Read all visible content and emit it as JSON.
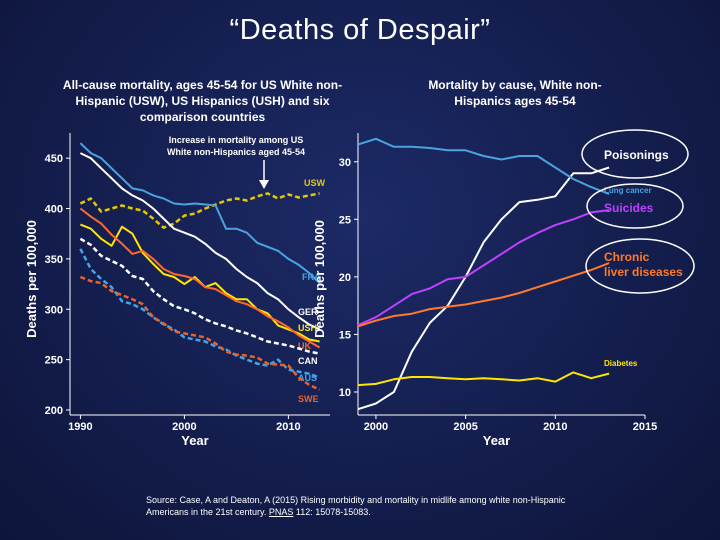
{
  "slide": {
    "title": "“Deaths of Despair”",
    "source_prefix": "Source: Case, A and Deaton, A (2015) Rising morbidity and mortality in midlife among white non-Hispanic Americans in the 21st century. ",
    "source_journal": "PNAS",
    "source_suffix": " 112: 15078-15083."
  },
  "colors": {
    "USW": "#e6c800",
    "FRA": "#4aa3e0",
    "GER": "#ffffff",
    "USH": "#ffe600",
    "UK": "#ff6a2a",
    "CAN": "#ffffff",
    "AUS": "#3fa6e8",
    "SWE": "#e8632a",
    "Poisonings": "#ffffff",
    "Lung cancer": "#4aa3e0",
    "Suicides": "#c040ff",
    "Chronic liver diseases": "#ff7a2a",
    "Diabetes": "#ffe600"
  },
  "chart_data": [
    {
      "type": "line",
      "title": "All-cause mortality, ages 45-54 for US White non-Hispanic (USW), US Hispanics (USH) and six comparison countries",
      "xlabel": "Year",
      "ylabel": "Deaths per 100,000",
      "xlim": [
        1989,
        2014
      ],
      "ylim": [
        195,
        475
      ],
      "xticks": [
        "1990",
        "2000",
        "2010"
      ],
      "yticks": [
        "200",
        "250",
        "300",
        "350",
        "400",
        "450"
      ],
      "annotation": "Increase in mortality among US White non-Hispanics aged 45-54",
      "series": [
        {
          "name": "USW",
          "style": "dashed",
          "x": [
            1990,
            1991,
            1992,
            1993,
            1994,
            1995,
            1996,
            1997,
            1998,
            1999,
            2000,
            2001,
            2002,
            2003,
            2004,
            2005,
            2006,
            2007,
            2008,
            2009,
            2010,
            2011,
            2012,
            2013
          ],
          "y": [
            405,
            410,
            397,
            400,
            403,
            400,
            398,
            390,
            381,
            385,
            393,
            395,
            400,
            404,
            408,
            410,
            408,
            412,
            415,
            410,
            414,
            411,
            413,
            415
          ]
        },
        {
          "name": "FRA",
          "style": "solid",
          "x": [
            1990,
            1991,
            1992,
            1993,
            1994,
            1995,
            1996,
            1997,
            1998,
            1999,
            2000,
            2001,
            2002,
            2003,
            2004,
            2005,
            2006,
            2007,
            2008,
            2009,
            2010,
            2011,
            2012,
            2013
          ],
          "y": [
            465,
            455,
            450,
            440,
            430,
            420,
            418,
            413,
            410,
            405,
            404,
            405,
            404,
            403,
            380,
            380,
            376,
            366,
            362,
            358,
            350,
            344,
            336,
            326
          ]
        },
        {
          "name": "GER",
          "style": "solid",
          "x": [
            1990,
            1991,
            1992,
            1993,
            1994,
            1995,
            1996,
            1997,
            1998,
            1999,
            2000,
            2001,
            2002,
            2003,
            2004,
            2005,
            2006,
            2007,
            2008,
            2009,
            2010,
            2011,
            2012,
            2013
          ],
          "y": [
            455,
            450,
            440,
            430,
            420,
            413,
            408,
            400,
            390,
            380,
            376,
            372,
            365,
            356,
            350,
            340,
            332,
            326,
            316,
            310,
            300,
            292,
            285,
            280
          ]
        },
        {
          "name": "USH",
          "style": "solid",
          "x": [
            1990,
            1991,
            1992,
            1993,
            1994,
            1995,
            1996,
            1997,
            1998,
            1999,
            2000,
            2001,
            2002,
            2003,
            2004,
            2005,
            2006,
            2007,
            2008,
            2009,
            2010,
            2011,
            2012,
            2013
          ],
          "y": [
            384,
            380,
            370,
            363,
            382,
            375,
            356,
            345,
            335,
            332,
            325,
            332,
            322,
            326,
            316,
            310,
            310,
            300,
            296,
            284,
            280,
            276,
            270,
            268
          ]
        },
        {
          "name": "UK",
          "style": "solid",
          "x": [
            1990,
            1991,
            1992,
            1993,
            1994,
            1995,
            1996,
            1997,
            1998,
            1999,
            2000,
            2001,
            2002,
            2003,
            2004,
            2005,
            2006,
            2007,
            2008,
            2009,
            2010,
            2011,
            2012,
            2013
          ],
          "y": [
            400,
            392,
            385,
            374,
            365,
            355,
            358,
            350,
            340,
            335,
            333,
            330,
            322,
            320,
            314,
            308,
            305,
            300,
            293,
            288,
            282,
            274,
            268,
            262
          ]
        },
        {
          "name": "CAN",
          "style": "dashed",
          "x": [
            1990,
            1991,
            1992,
            1993,
            1994,
            1995,
            1996,
            1997,
            1998,
            1999,
            2000,
            2001,
            2002,
            2003,
            2004,
            2005,
            2006,
            2007,
            2008,
            2009,
            2010,
            2011,
            2012,
            2013
          ],
          "y": [
            370,
            364,
            353,
            348,
            343,
            333,
            330,
            318,
            310,
            303,
            300,
            296,
            290,
            286,
            283,
            279,
            276,
            272,
            268,
            266,
            264,
            261,
            258,
            256
          ]
        },
        {
          "name": "AUS",
          "style": "dashed",
          "x": [
            1990,
            1991,
            1992,
            1993,
            1994,
            1995,
            1996,
            1997,
            1998,
            1999,
            2000,
            2001,
            2002,
            2003,
            2004,
            2005,
            2006,
            2007,
            2008,
            2009,
            2010,
            2011,
            2012,
            2013
          ],
          "y": [
            360,
            340,
            330,
            322,
            308,
            305,
            300,
            292,
            285,
            280,
            272,
            270,
            268,
            263,
            260,
            254,
            250,
            246,
            244,
            250,
            240,
            238,
            236,
            232
          ]
        },
        {
          "name": "SWE",
          "style": "dashed",
          "x": [
            1990,
            1991,
            1992,
            1993,
            1994,
            1995,
            1996,
            1997,
            1998,
            1999,
            2000,
            2001,
            2002,
            2003,
            2004,
            2005,
            2006,
            2007,
            2008,
            2009,
            2010,
            2011,
            2012,
            2013
          ],
          "y": [
            332,
            328,
            326,
            318,
            314,
            310,
            305,
            292,
            286,
            278,
            276,
            274,
            272,
            266,
            258,
            255,
            254,
            252,
            246,
            245,
            244,
            232,
            225,
            220
          ]
        }
      ]
    },
    {
      "type": "line",
      "title": "Mortality by cause, White non-Hispanics ages 45-54",
      "xlabel": "Year",
      "ylabel": "Deaths per 100,000",
      "xlim": [
        1999,
        2015
      ],
      "ylim": [
        8,
        32.5
      ],
      "xticks": [
        "2000",
        "2005",
        "2010",
        "2015"
      ],
      "yticks": [
        "10",
        "15",
        "20",
        "25",
        "30"
      ],
      "series": [
        {
          "name": "Poisonings",
          "style": "solid",
          "x": [
            1999,
            2000,
            2001,
            2002,
            2003,
            2004,
            2005,
            2006,
            2007,
            2008,
            2009,
            2010,
            2011,
            2012,
            2013
          ],
          "y": [
            8.5,
            9.0,
            10.0,
            13.5,
            16.0,
            17.5,
            20.0,
            23.0,
            25.0,
            26.5,
            26.7,
            27.0,
            29.0,
            29.0,
            29.5
          ]
        },
        {
          "name": "Lung cancer",
          "style": "solid",
          "x": [
            1999,
            2000,
            2001,
            2002,
            2003,
            2004,
            2005,
            2006,
            2007,
            2008,
            2009,
            2010,
            2011,
            2012,
            2013
          ],
          "y": [
            31.5,
            32.0,
            31.3,
            31.3,
            31.2,
            31.0,
            31.0,
            30.5,
            30.2,
            30.5,
            30.5,
            29.5,
            28.5,
            27.8,
            27.2
          ]
        },
        {
          "name": "Suicides",
          "style": "solid",
          "x": [
            1999,
            2000,
            2001,
            2002,
            2003,
            2004,
            2005,
            2006,
            2007,
            2008,
            2009,
            2010,
            2011,
            2012,
            2013
          ],
          "y": [
            15.8,
            16.5,
            17.5,
            18.5,
            19.0,
            19.8,
            20.0,
            21.0,
            22.0,
            23.0,
            23.8,
            24.5,
            25.0,
            25.6,
            25.8
          ]
        },
        {
          "name": "Chronic liver diseases",
          "style": "solid",
          "x": [
            1999,
            2000,
            2001,
            2002,
            2003,
            2004,
            2005,
            2006,
            2007,
            2008,
            2009,
            2010,
            2011,
            2012,
            2013
          ],
          "y": [
            15.7,
            16.2,
            16.6,
            16.8,
            17.2,
            17.4,
            17.6,
            17.9,
            18.2,
            18.6,
            19.1,
            19.6,
            20.1,
            20.6,
            21.2
          ]
        },
        {
          "name": "Diabetes",
          "style": "solid",
          "x": [
            1999,
            2000,
            2001,
            2002,
            2003,
            2004,
            2005,
            2006,
            2007,
            2008,
            2009,
            2010,
            2011,
            2012,
            2013
          ],
          "y": [
            10.6,
            10.7,
            11.1,
            11.3,
            11.3,
            11.2,
            11.1,
            11.2,
            11.1,
            11.0,
            11.2,
            10.9,
            11.7,
            11.2,
            11.6
          ]
        }
      ]
    }
  ]
}
